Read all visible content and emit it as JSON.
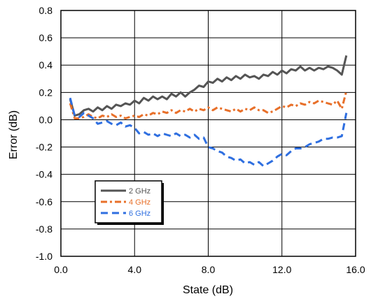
{
  "chart_data": {
    "type": "line",
    "xlabel": "State (dB)",
    "ylabel": "Error (dB)",
    "xlim": [
      0,
      16
    ],
    "ylim": [
      -1.0,
      0.8
    ],
    "xticks": [
      0,
      4,
      8,
      12,
      16
    ],
    "xtick_labels": [
      "0.0",
      "4.0",
      "8.0",
      "12.0",
      "16.0"
    ],
    "yticks": [
      0.8,
      0.6,
      0.4,
      0.2,
      0.0,
      -0.2,
      -0.4,
      -0.6,
      -0.8,
      -1.0
    ],
    "ytick_labels": [
      "0.8",
      "0.6",
      "0.4",
      "0.2",
      "0.0",
      "-0.2",
      "-0.4",
      "-0.6",
      "-0.8",
      "-1.0"
    ],
    "grid": true,
    "legend_position": "lower-left",
    "series": [
      {
        "name": "2 GHz",
        "color": "#555555",
        "dash": "solid",
        "x": [
          0.5,
          0.75,
          1.0,
          1.25,
          1.5,
          1.75,
          2.0,
          2.25,
          2.5,
          2.75,
          3.0,
          3.25,
          3.5,
          3.75,
          4.0,
          4.25,
          4.5,
          4.75,
          5.0,
          5.25,
          5.5,
          5.75,
          6.0,
          6.25,
          6.5,
          6.75,
          7.0,
          7.25,
          7.5,
          7.75,
          8.0,
          8.25,
          8.5,
          8.75,
          9.0,
          9.25,
          9.5,
          9.75,
          10.0,
          10.25,
          10.5,
          10.75,
          11.0,
          11.25,
          11.5,
          11.75,
          12.0,
          12.25,
          12.5,
          12.75,
          13.0,
          13.25,
          13.5,
          13.75,
          14.0,
          14.25,
          14.5,
          14.75,
          15.0,
          15.25,
          15.5
        ],
        "y": [
          0.15,
          0.03,
          0.04,
          0.07,
          0.08,
          0.06,
          0.09,
          0.07,
          0.1,
          0.08,
          0.11,
          0.1,
          0.12,
          0.11,
          0.14,
          0.12,
          0.16,
          0.14,
          0.17,
          0.15,
          0.17,
          0.15,
          0.19,
          0.17,
          0.2,
          0.17,
          0.2,
          0.22,
          0.25,
          0.24,
          0.28,
          0.27,
          0.3,
          0.28,
          0.31,
          0.29,
          0.32,
          0.3,
          0.33,
          0.31,
          0.32,
          0.3,
          0.33,
          0.32,
          0.35,
          0.33,
          0.36,
          0.34,
          0.37,
          0.36,
          0.39,
          0.36,
          0.38,
          0.36,
          0.38,
          0.37,
          0.39,
          0.38,
          0.36,
          0.33,
          0.47
        ]
      },
      {
        "name": "4 GHz",
        "color": "#E8702A",
        "dash": "dashdot",
        "x": [
          0.5,
          0.75,
          1.0,
          1.25,
          1.5,
          1.75,
          2.0,
          2.25,
          2.5,
          2.75,
          3.0,
          3.25,
          3.5,
          3.75,
          4.0,
          4.25,
          4.5,
          4.75,
          5.0,
          5.25,
          5.5,
          5.75,
          6.0,
          6.25,
          6.5,
          6.75,
          7.0,
          7.25,
          7.5,
          7.75,
          8.0,
          8.25,
          8.5,
          8.75,
          9.0,
          9.25,
          9.5,
          9.75,
          10.0,
          10.25,
          10.5,
          10.75,
          11.0,
          11.25,
          11.5,
          11.75,
          12.0,
          12.25,
          12.5,
          12.75,
          13.0,
          13.25,
          13.5,
          13.75,
          14.0,
          14.25,
          14.5,
          14.75,
          15.0,
          15.25,
          15.5
        ],
        "y": [
          0.12,
          0.01,
          0.01,
          0.02,
          0.04,
          0.02,
          0.01,
          0.03,
          0.02,
          0.04,
          0.02,
          0.03,
          0.01,
          0.02,
          0.03,
          0.02,
          0.04,
          0.03,
          0.05,
          0.04,
          0.06,
          0.05,
          0.07,
          0.05,
          0.07,
          0.06,
          0.08,
          0.06,
          0.08,
          0.07,
          0.09,
          0.07,
          0.09,
          0.08,
          0.07,
          0.06,
          0.08,
          0.06,
          0.08,
          0.07,
          0.09,
          0.07,
          0.07,
          0.05,
          0.06,
          0.08,
          0.1,
          0.09,
          0.11,
          0.1,
          0.12,
          0.11,
          0.13,
          0.12,
          0.14,
          0.13,
          0.12,
          0.11,
          0.14,
          0.08,
          0.21
        ]
      },
      {
        "name": "6 GHz",
        "color": "#2F6FE0",
        "dash": "dashed",
        "x": [
          0.5,
          0.75,
          1.0,
          1.25,
          1.5,
          1.75,
          2.0,
          2.25,
          2.5,
          2.75,
          3.0,
          3.25,
          3.5,
          3.75,
          4.0,
          4.25,
          4.5,
          4.75,
          5.0,
          5.25,
          5.5,
          5.75,
          6.0,
          6.25,
          6.5,
          6.75,
          7.0,
          7.25,
          7.5,
          7.75,
          8.0,
          8.25,
          8.5,
          8.75,
          9.0,
          9.25,
          9.5,
          9.75,
          10.0,
          10.25,
          10.5,
          10.75,
          11.0,
          11.25,
          11.5,
          11.75,
          12.0,
          12.25,
          12.5,
          12.75,
          13.0,
          13.25,
          13.5,
          13.75,
          14.0,
          14.25,
          14.5,
          14.75,
          15.0,
          15.25,
          15.5
        ],
        "y": [
          0.16,
          0.03,
          0.02,
          0.05,
          0.03,
          0.01,
          -0.03,
          -0.02,
          -0.01,
          -0.03,
          -0.04,
          -0.02,
          -0.05,
          -0.04,
          -0.06,
          -0.1,
          -0.09,
          -0.11,
          -0.1,
          -0.12,
          -0.1,
          -0.11,
          -0.12,
          -0.1,
          -0.12,
          -0.11,
          -0.13,
          -0.11,
          -0.14,
          -0.13,
          -0.2,
          -0.21,
          -0.23,
          -0.24,
          -0.27,
          -0.28,
          -0.3,
          -0.29,
          -0.32,
          -0.31,
          -0.33,
          -0.31,
          -0.34,
          -0.32,
          -0.3,
          -0.27,
          -0.25,
          -0.26,
          -0.23,
          -0.21,
          -0.21,
          -0.2,
          -0.18,
          -0.17,
          -0.16,
          -0.14,
          -0.14,
          -0.13,
          -0.13,
          -0.12,
          0.05
        ]
      }
    ]
  }
}
